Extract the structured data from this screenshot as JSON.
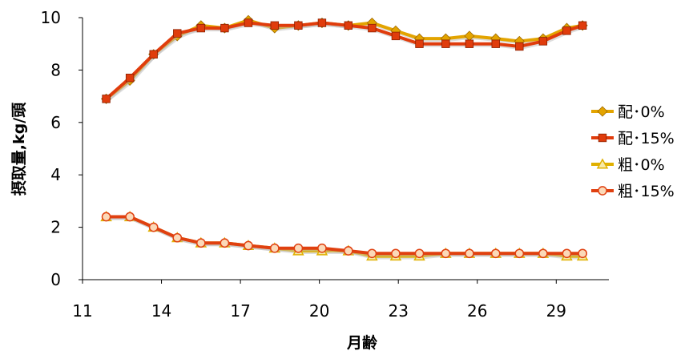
{
  "chart_data": {
    "type": "line",
    "title": "",
    "xlabel": "月齢",
    "ylabel": "摂取量,kg/頭",
    "xlim": [
      11,
      31
    ],
    "ylim": [
      0,
      10
    ],
    "x_ticks": [
      "11",
      "14",
      "17",
      "20",
      "23",
      "26",
      "29"
    ],
    "y_ticks": [
      "0",
      "2",
      "4",
      "6",
      "8",
      "10"
    ],
    "grid": false,
    "legend_position": "right",
    "x": [
      11.9,
      12.8,
      13.7,
      14.6,
      15.5,
      16.4,
      17.3,
      18.3,
      19.2,
      20.1,
      21.1,
      22.0,
      22.9,
      23.8,
      24.8,
      25.7,
      26.7,
      27.6,
      28.5,
      29.4,
      30.0
    ],
    "series": [
      {
        "name": "配･0%",
        "color": "#e3a400",
        "marker": "diamond",
        "values": [
          6.9,
          7.6,
          8.6,
          9.3,
          9.7,
          9.6,
          9.9,
          9.6,
          9.7,
          9.8,
          9.7,
          9.8,
          9.5,
          9.2,
          9.2,
          9.3,
          9.2,
          9.1,
          9.2,
          9.6,
          9.7
        ]
      },
      {
        "name": "配･15%",
        "color": "#e03c0c",
        "marker": "square",
        "values": [
          6.9,
          7.7,
          8.6,
          9.4,
          9.6,
          9.6,
          9.8,
          9.7,
          9.7,
          9.8,
          9.7,
          9.6,
          9.3,
          9.0,
          9.0,
          9.0,
          9.0,
          8.9,
          9.1,
          9.5,
          9.7
        ]
      },
      {
        "name": "粗･0%",
        "color": "#e0b000",
        "marker": "triangle",
        "values": [
          2.4,
          2.4,
          2.0,
          1.6,
          1.4,
          1.4,
          1.3,
          1.2,
          1.1,
          1.1,
          1.1,
          0.9,
          0.9,
          0.9,
          1.0,
          1.0,
          1.0,
          1.0,
          1.0,
          0.9,
          0.9
        ]
      },
      {
        "name": "粗･15%",
        "color": "#e04010",
        "marker": "circle",
        "values": [
          2.4,
          2.4,
          2.0,
          1.6,
          1.4,
          1.4,
          1.3,
          1.2,
          1.2,
          1.2,
          1.1,
          1.0,
          1.0,
          1.0,
          1.0,
          1.0,
          1.0,
          1.0,
          1.0,
          1.0,
          1.0
        ]
      }
    ]
  }
}
